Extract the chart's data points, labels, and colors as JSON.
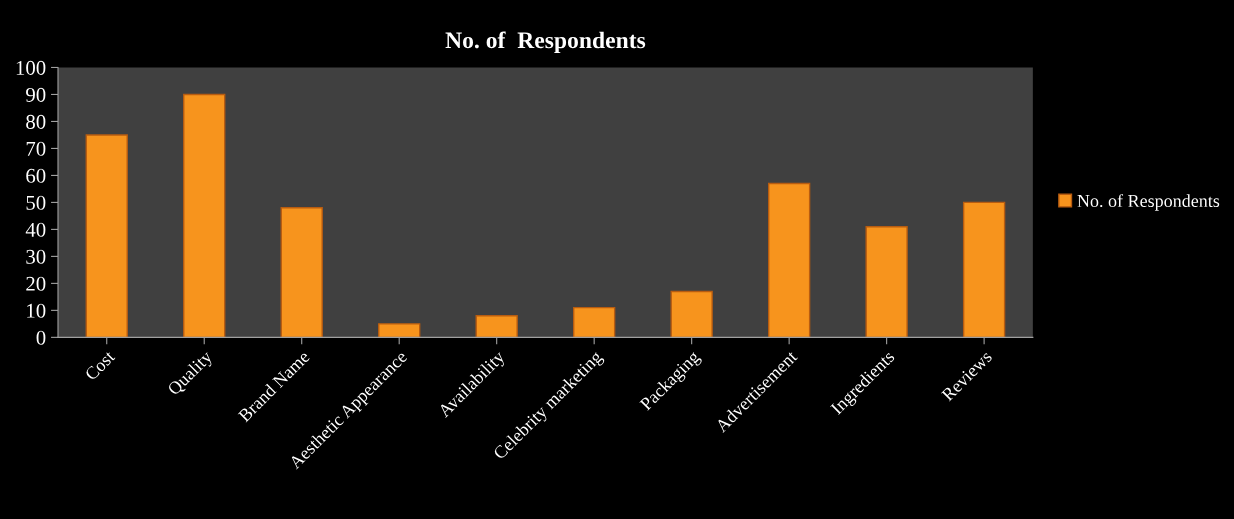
{
  "chart_data": {
    "type": "bar",
    "title": "No. of  Respondents",
    "categories": [
      "Cost",
      "Quality",
      "Brand Name",
      "Aesthetic Appearance",
      "Availability",
      "Celebrity marketing",
      "Packaging",
      "Advertisement",
      "Ingredients",
      "Reviews"
    ],
    "series": [
      {
        "name": "No. of Respondents",
        "color": "#f7941d",
        "values": [
          75,
          90,
          48,
          5,
          8,
          11,
          17,
          57,
          41,
          50
        ]
      }
    ],
    "ylim": [
      0,
      100
    ],
    "yticks": [
      0,
      10,
      20,
      30,
      40,
      50,
      60,
      70,
      80,
      90,
      100
    ],
    "grid": false,
    "legend": "right"
  }
}
